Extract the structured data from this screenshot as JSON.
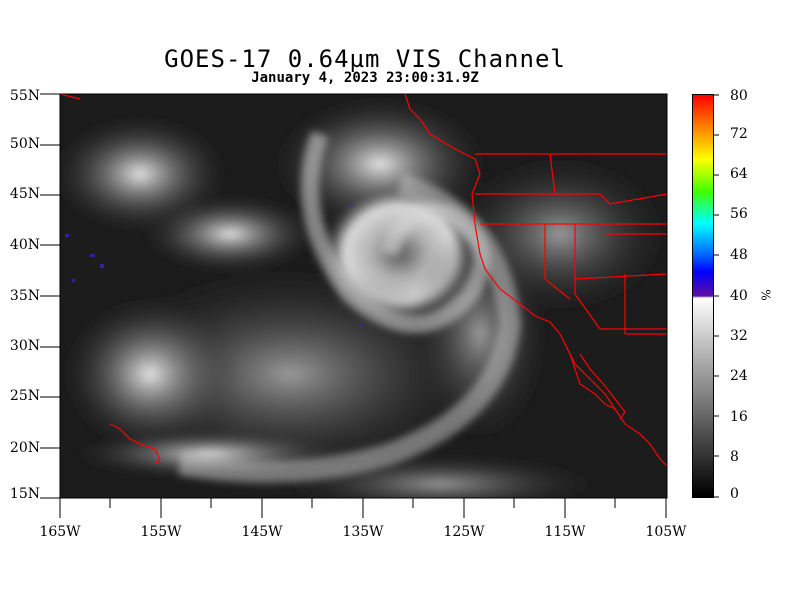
{
  "title": "GOES-17  0.64µm VIS Channel",
  "subtitle": "January  4,  2023 23:00:31.9Z",
  "y_ticks": [
    "55N",
    "50N",
    "45N",
    "40N",
    "35N",
    "30N",
    "25N",
    "20N",
    "15N"
  ],
  "x_ticks": [
    "165W",
    "155W",
    "145W",
    "135W",
    "125W",
    "115W",
    "105W"
  ],
  "colorbar": {
    "labels": [
      "80",
      "72",
      "64",
      "56",
      "48",
      "40",
      "32",
      "24",
      "16",
      "8",
      "0"
    ],
    "unit": "%"
  },
  "colors": {
    "boundary": "#ff0000",
    "background": "#ffffff"
  }
}
